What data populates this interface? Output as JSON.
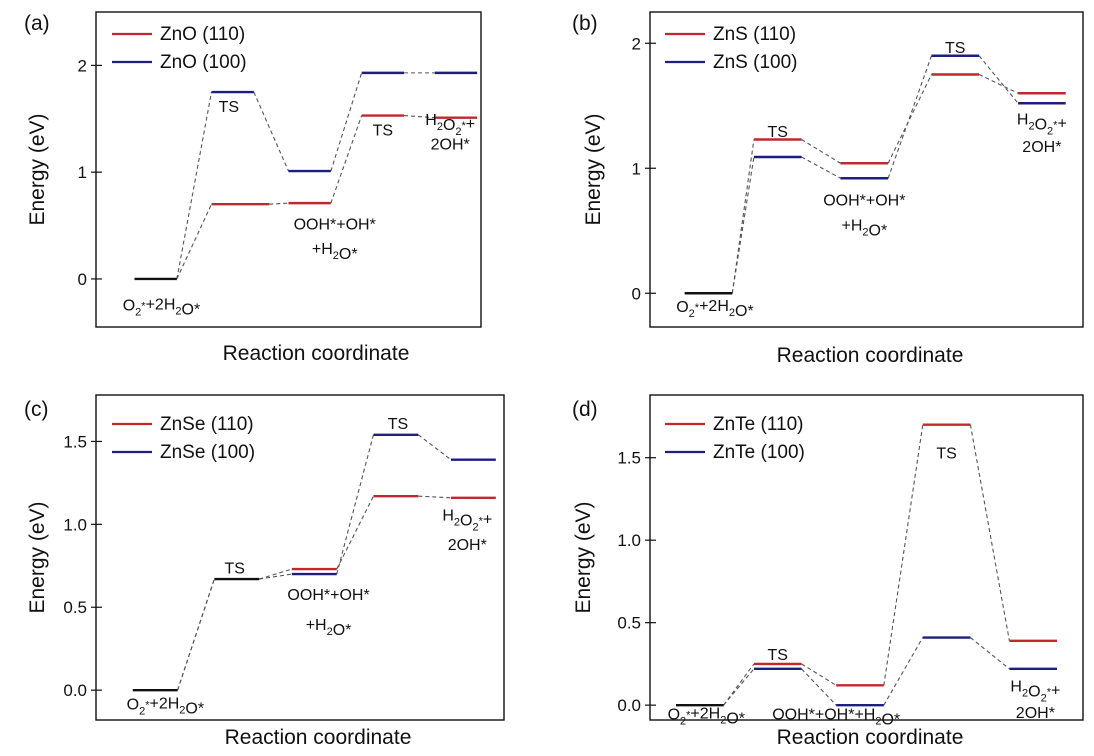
{
  "colors": {
    "red": "#c0282e",
    "blue": "#1c1f7c",
    "black": "#111111",
    "connector": "#555555"
  },
  "chart_data": [
    {
      "type": "line",
      "panel_label": "(a)",
      "xlabel": "Reaction coordinate",
      "ylabel": "Energy (eV)",
      "ylim": [
        -0.45,
        2.5
      ],
      "yticks": [
        {
          "v": 0,
          "label": "0"
        },
        {
          "v": 1,
          "label": "1"
        },
        {
          "v": 2,
          "label": "2"
        }
      ],
      "legend": [
        "ZnO (110)",
        "ZnO (100)"
      ],
      "levels": [
        {
          "s": 0,
          "x1": 0.1,
          "x2": 0.21,
          "y": 0.0,
          "c": "black"
        },
        {
          "s": 1,
          "x1": 0.3,
          "x2": 0.45,
          "y": 0.7,
          "c": "red"
        },
        {
          "s": 2,
          "x1": 0.5,
          "x2": 0.61,
          "y": 0.71,
          "c": "red"
        },
        {
          "s": 3,
          "x1": 0.69,
          "x2": 0.8,
          "y": 1.53,
          "c": "red"
        },
        {
          "s": 4,
          "x1": 0.88,
          "x2": 0.99,
          "y": 1.51,
          "c": "red"
        },
        {
          "s": 1,
          "x1": 0.3,
          "x2": 0.41,
          "y": 1.75,
          "c": "blue"
        },
        {
          "s": 2,
          "x1": 0.5,
          "x2": 0.61,
          "y": 1.01,
          "c": "blue"
        },
        {
          "s": 3,
          "x1": 0.69,
          "x2": 0.8,
          "y": 1.93,
          "c": "blue"
        },
        {
          "s": 4,
          "x1": 0.88,
          "x2": 0.99,
          "y": 1.93,
          "c": "blue"
        }
      ],
      "annotations": [
        {
          "x": 0.345,
          "y": 1.62,
          "parts": [
            [
              "TS",
              0
            ]
          ]
        },
        {
          "x": 0.745,
          "y": 1.4,
          "parts": [
            [
              "TS",
              0
            ]
          ]
        },
        {
          "x": 0.92,
          "y": 1.5,
          "parts": [
            [
              "H",
              0
            ],
            [
              "2",
              1
            ],
            [
              "O",
              0
            ],
            [
              "2",
              1
            ],
            [
              "*",
              2
            ],
            [
              "+",
              0
            ]
          ]
        },
        {
          "x": 0.92,
          "y": 1.27,
          "parts": [
            [
              "2OH*",
              0
            ]
          ]
        },
        {
          "x": 0.62,
          "y": 0.52,
          "parts": [
            [
              "OOH*+OH*",
              0
            ]
          ]
        },
        {
          "x": 0.62,
          "y": 0.29,
          "parts": [
            [
              "+H",
              0
            ],
            [
              "2",
              1
            ],
            [
              "O*",
              0
            ]
          ]
        },
        {
          "x": 0.17,
          "y": -0.24,
          "parts": [
            [
              "O",
              0
            ],
            [
              "2",
              1
            ],
            [
              "*",
              2
            ],
            [
              "+2H",
              0
            ],
            [
              "2",
              1
            ],
            [
              "O*",
              0
            ]
          ]
        }
      ]
    },
    {
      "type": "line",
      "panel_label": "(b)",
      "xlabel": "Reaction coordinate",
      "ylabel": "Energy (eV)",
      "ylim": [
        -0.27,
        2.25
      ],
      "yticks": [
        {
          "v": 0,
          "label": "0"
        },
        {
          "v": 1,
          "label": "1"
        },
        {
          "v": 2,
          "label": "2"
        }
      ],
      "legend": [
        "ZnS (110)",
        "ZnS (100)"
      ],
      "levels": [
        {
          "s": 0,
          "x1": 0.08,
          "x2": 0.19,
          "y": 0.0,
          "c": "black"
        },
        {
          "s": 1,
          "x1": 0.24,
          "x2": 0.35,
          "y": 1.23,
          "c": "red"
        },
        {
          "s": 2,
          "x1": 0.44,
          "x2": 0.55,
          "y": 1.04,
          "c": "red"
        },
        {
          "s": 3,
          "x1": 0.65,
          "x2": 0.76,
          "y": 1.75,
          "c": "red"
        },
        {
          "s": 4,
          "x1": 0.85,
          "x2": 0.96,
          "y": 1.6,
          "c": "red"
        },
        {
          "s": 1,
          "x1": 0.24,
          "x2": 0.35,
          "y": 1.09,
          "c": "blue"
        },
        {
          "s": 2,
          "x1": 0.44,
          "x2": 0.55,
          "y": 0.92,
          "c": "blue"
        },
        {
          "s": 3,
          "x1": 0.65,
          "x2": 0.76,
          "y": 1.9,
          "c": "blue"
        },
        {
          "s": 4,
          "x1": 0.85,
          "x2": 0.96,
          "y": 1.52,
          "c": "blue"
        }
      ],
      "annotations": [
        {
          "x": 0.295,
          "y": 1.3,
          "parts": [
            [
              "TS",
              0
            ]
          ]
        },
        {
          "x": 0.705,
          "y": 1.97,
          "parts": [
            [
              "TS",
              0
            ]
          ]
        },
        {
          "x": 0.905,
          "y": 1.4,
          "parts": [
            [
              "H",
              0
            ],
            [
              "2",
              1
            ],
            [
              "O",
              0
            ],
            [
              "2",
              1
            ],
            [
              "*",
              2
            ],
            [
              "+",
              0
            ]
          ]
        },
        {
          "x": 0.905,
          "y": 1.18,
          "parts": [
            [
              "2OH*",
              0
            ]
          ]
        },
        {
          "x": 0.495,
          "y": 0.75,
          "parts": [
            [
              "OOH*+OH*",
              0
            ]
          ]
        },
        {
          "x": 0.495,
          "y": 0.55,
          "parts": [
            [
              "+H",
              0
            ],
            [
              "2",
              1
            ],
            [
              "O*",
              0
            ]
          ]
        },
        {
          "x": 0.15,
          "y": -0.1,
          "parts": [
            [
              "O",
              0
            ],
            [
              "2",
              1
            ],
            [
              "*",
              2
            ],
            [
              "+2H",
              0
            ],
            [
              "2",
              1
            ],
            [
              "O*",
              0
            ]
          ]
        }
      ]
    },
    {
      "type": "line",
      "panel_label": "(c)",
      "xlabel": "Reaction coordinate",
      "ylabel": "Energy (eV)",
      "ylim": [
        -0.18,
        1.78
      ],
      "yticks": [
        {
          "v": 0.0,
          "label": "0.0"
        },
        {
          "v": 0.5,
          "label": "0.5"
        },
        {
          "v": 1.0,
          "label": "1.0"
        },
        {
          "v": 1.5,
          "label": "1.5"
        }
      ],
      "legend": [
        "ZnSe (110)",
        "ZnSe (100)"
      ],
      "levels": [
        {
          "s": 0,
          "x1": 0.09,
          "x2": 0.2,
          "y": 0.0,
          "c": "black"
        },
        {
          "s": 1,
          "x1": 0.29,
          "x2": 0.4,
          "y": 0.67,
          "c": "black"
        },
        {
          "s": 2,
          "x1": 0.48,
          "x2": 0.59,
          "y": 0.73,
          "c": "red"
        },
        {
          "s": 3,
          "x1": 0.68,
          "x2": 0.79,
          "y": 1.17,
          "c": "red"
        },
        {
          "s": 4,
          "x1": 0.87,
          "x2": 0.98,
          "y": 1.16,
          "c": "red"
        },
        {
          "s": 2,
          "x1": 0.48,
          "x2": 0.59,
          "y": 0.7,
          "c": "blue"
        },
        {
          "s": 3,
          "x1": 0.68,
          "x2": 0.79,
          "y": 1.54,
          "c": "blue"
        },
        {
          "s": 4,
          "x1": 0.87,
          "x2": 0.98,
          "y": 1.39,
          "c": "blue"
        }
      ],
      "annotations": [
        {
          "x": 0.34,
          "y": 0.74,
          "parts": [
            [
              "TS",
              0
            ]
          ]
        },
        {
          "x": 0.74,
          "y": 1.61,
          "parts": [
            [
              "TS",
              0
            ]
          ]
        },
        {
          "x": 0.91,
          "y": 1.06,
          "parts": [
            [
              "H",
              0
            ],
            [
              "2",
              1
            ],
            [
              "O",
              0
            ],
            [
              "2",
              1
            ],
            [
              "*",
              2
            ],
            [
              "+",
              0
            ]
          ]
        },
        {
          "x": 0.91,
          "y": 0.88,
          "parts": [
            [
              "2OH*",
              0
            ]
          ]
        },
        {
          "x": 0.57,
          "y": 0.58,
          "parts": [
            [
              "OOH*+OH*",
              0
            ]
          ]
        },
        {
          "x": 0.57,
          "y": 0.4,
          "parts": [
            [
              "+H",
              0
            ],
            [
              "2",
              1
            ],
            [
              "O*",
              0
            ]
          ]
        },
        {
          "x": 0.17,
          "y": -0.08,
          "parts": [
            [
              "O",
              0
            ],
            [
              "2",
              1
            ],
            [
              "*",
              2
            ],
            [
              "+2H",
              0
            ],
            [
              "2",
              1
            ],
            [
              "O*",
              0
            ]
          ]
        }
      ]
    },
    {
      "type": "line",
      "panel_label": "(d)",
      "xlabel": "Reaction coordinate",
      "ylabel": "Energy (eV)",
      "ylim": [
        -0.09,
        1.88
      ],
      "yticks": [
        {
          "v": 0.0,
          "label": "0.0"
        },
        {
          "v": 0.5,
          "label": "0.5"
        },
        {
          "v": 1.0,
          "label": "1.0"
        },
        {
          "v": 1.5,
          "label": "1.5"
        }
      ],
      "legend": [
        "ZnTe (110)",
        "ZnTe (100)"
      ],
      "levels": [
        {
          "s": 0,
          "x1": 0.06,
          "x2": 0.17,
          "y": 0.0,
          "c": "black"
        },
        {
          "s": 1,
          "x1": 0.24,
          "x2": 0.35,
          "y": 0.25,
          "c": "red"
        },
        {
          "s": 2,
          "x1": 0.43,
          "x2": 0.54,
          "y": 0.12,
          "c": "red"
        },
        {
          "s": 3,
          "x1": 0.63,
          "x2": 0.74,
          "y": 1.7,
          "c": "red"
        },
        {
          "s": 4,
          "x1": 0.83,
          "x2": 0.94,
          "y": 0.39,
          "c": "red"
        },
        {
          "s": 1,
          "x1": 0.24,
          "x2": 0.35,
          "y": 0.22,
          "c": "blue"
        },
        {
          "s": 2,
          "x1": 0.43,
          "x2": 0.54,
          "y": 0.0,
          "c": "blue"
        },
        {
          "s": 3,
          "x1": 0.63,
          "x2": 0.74,
          "y": 0.41,
          "c": "blue"
        },
        {
          "s": 4,
          "x1": 0.83,
          "x2": 0.94,
          "y": 0.22,
          "c": "blue"
        }
      ],
      "annotations": [
        {
          "x": 0.295,
          "y": 0.31,
          "parts": [
            [
              "TS",
              0
            ]
          ]
        },
        {
          "x": 0.685,
          "y": 1.53,
          "parts": [
            [
              "TS",
              0
            ]
          ]
        },
        {
          "x": 0.89,
          "y": 0.12,
          "parts": [
            [
              "H",
              0
            ],
            [
              "2",
              1
            ],
            [
              "O",
              0
            ],
            [
              "2",
              1
            ],
            [
              "*",
              2
            ],
            [
              "+",
              0
            ]
          ]
        },
        {
          "x": 0.89,
          "y": -0.04,
          "parts": [
            [
              "2OH*",
              0
            ]
          ]
        },
        {
          "x": 0.43,
          "y": -0.05,
          "parts": [
            [
              "OOH*+OH*+H",
              0
            ],
            [
              "2",
              1
            ],
            [
              "O*",
              0
            ]
          ]
        },
        {
          "x": 0.13,
          "y": -0.05,
          "parts": [
            [
              "O",
              0
            ],
            [
              "2",
              1
            ],
            [
              "*",
              2
            ],
            [
              "+2H",
              0
            ],
            [
              "2",
              1
            ],
            [
              "O*",
              0
            ]
          ]
        }
      ]
    }
  ]
}
